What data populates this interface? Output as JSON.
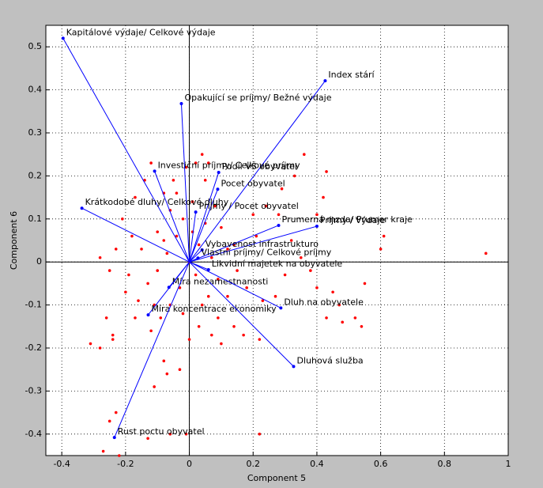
{
  "chart_data": {
    "type": "biplot",
    "xlabel": "Component 5",
    "ylabel": "Component 6",
    "xlim": [
      -0.45,
      1
    ],
    "ylim": [
      -0.45,
      0.55
    ],
    "xticks": [
      -0.4,
      -0.2,
      0,
      0.2,
      0.4,
      0.6,
      0.8,
      1
    ],
    "yticks": [
      -0.4,
      -0.3,
      -0.2,
      -0.1,
      0,
      0.1,
      0.2,
      0.3,
      0.4,
      0.5
    ],
    "grid": true,
    "vectors": {
      "color": "#0000ff",
      "labels": [
        "Kapitálové výdaje/ Celkové výdaje",
        "Index stárí",
        "Opakující se príjmy/ Bežné výdaje",
        "Investiční príjmy/ Celkové príjmy",
        "Podíl VŠ obyvatel",
        "Pocet obyvatel",
        "Krátkodobé dluhy/ Celkové dluhy",
        "Príjmy / Pocet obyvatel",
        "Prumerná mzda/ Prumer kraje",
        "Príjmy / Výdaje",
        "Vybavenost infrastrukturo",
        "Vlastní príjmy/ Celkové príjmy",
        "Likvidní majetek na obyvatele",
        "Míra nezamestnanosti",
        "Dluh na obyvatele",
        "Míra koncentrace ekonomiky",
        "Dluhová služba",
        "Rust poctu obyvatel"
      ],
      "x": [
        -0.396,
        0.426,
        -0.025,
        -0.109,
        0.092,
        0.089,
        -0.337,
        0.02,
        0.28,
        0.4,
        0.04,
        0.027,
        0.06,
        -0.064,
        0.287,
        -0.129,
        0.327,
        -0.235
      ],
      "y": [
        0.52,
        0.421,
        0.368,
        0.211,
        0.208,
        0.169,
        0.125,
        0.116,
        0.085,
        0.083,
        0.028,
        0.009,
        -0.018,
        -0.059,
        -0.107,
        -0.123,
        -0.243,
        -0.408
      ]
    },
    "scores": {
      "color": "#ff0000",
      "x": [
        0.93,
        0.6,
        0.61,
        0.55,
        0.54,
        0.52,
        0.48,
        0.43,
        0.43,
        0.42,
        0.4,
        0.38,
        0.4,
        0.45,
        0.47,
        0.36,
        0.33,
        0.29,
        0.24,
        0.2,
        0.22,
        0.17,
        0.14,
        0.1,
        0.07,
        0.0,
        -0.08,
        -0.03,
        -0.31,
        -0.24,
        -0.24,
        -0.28,
        -0.26,
        -0.23,
        -0.27,
        -0.25,
        -0.22,
        -0.13,
        -0.06,
        -0.01,
        0.22,
        -0.11,
        -0.07,
        0.03,
        0.09,
        0.21,
        0.28,
        0.32,
        0.35,
        0.3,
        0.27,
        0.23,
        0.18,
        0.15,
        0.12,
        0.1,
        0.08,
        0.05,
        0.04,
        0.06,
        0.02,
        -0.01,
        -0.05,
        -0.08,
        -0.12,
        -0.14,
        -0.17,
        -0.21,
        -0.23,
        -0.19,
        -0.16,
        -0.2,
        -0.13,
        -0.1,
        -0.07,
        -0.04,
        -0.02,
        0.01,
        0.03,
        0.0,
        0.02,
        -0.03,
        -0.06,
        -0.09,
        -0.12,
        0.06,
        0.09,
        0.05,
        -0.06,
        -0.1,
        -0.15,
        -0.18,
        -0.11,
        -0.02,
        0.04,
        0.12,
        0.14,
        -0.25,
        -0.28,
        -0.17,
        0.01,
        -0.04,
        0.07,
        -0.08
      ],
      "y": [
        0.02,
        0.03,
        0.06,
        -0.05,
        -0.15,
        -0.13,
        -0.14,
        -0.13,
        0.21,
        0.15,
        0.11,
        -0.02,
        -0.06,
        -0.07,
        -0.1,
        0.25,
        0.2,
        0.17,
        0.13,
        0.11,
        -0.18,
        -0.17,
        -0.15,
        -0.19,
        -0.17,
        -0.18,
        -0.23,
        -0.25,
        -0.19,
        -0.18,
        -0.17,
        -0.2,
        -0.13,
        -0.35,
        -0.44,
        -0.37,
        -0.45,
        -0.41,
        -0.4,
        -0.4,
        -0.4,
        -0.29,
        -0.26,
        -0.15,
        -0.13,
        0.06,
        0.11,
        0.05,
        0.01,
        -0.03,
        -0.08,
        -0.09,
        -0.06,
        -0.02,
        0.03,
        0.08,
        0.13,
        0.19,
        0.25,
        0.23,
        0.23,
        0.22,
        0.19,
        0.16,
        0.23,
        0.19,
        0.15,
        0.1,
        0.03,
        -0.03,
        -0.09,
        -0.07,
        -0.05,
        -0.02,
        0.02,
        0.06,
        0.1,
        0.14,
        0.04,
        0.0,
        -0.03,
        -0.06,
        -0.1,
        -0.13,
        -0.16,
        -0.08,
        -0.04,
        0.09,
        0.12,
        0.07,
        0.03,
        0.06,
        -0.1,
        -0.12,
        -0.1,
        -0.08,
        0.04,
        -0.02,
        0.01,
        -0.13,
        0.07,
        0.16,
        0.01,
        0.05
      ]
    }
  }
}
